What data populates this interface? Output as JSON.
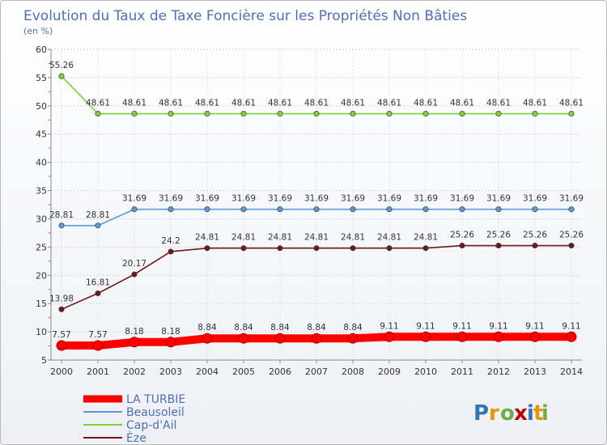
{
  "chart_data": {
    "type": "line",
    "title": "Evolution du Taux de Taxe Foncière sur les Propriétés Non Bâties",
    "unit_label": "(en %)",
    "xlabel": "",
    "ylabel": "",
    "categories": [
      "2000",
      "2001",
      "2002",
      "2003",
      "2004",
      "2005",
      "2006",
      "2007",
      "2008",
      "2009",
      "2010",
      "2011",
      "2012",
      "2013",
      "2014"
    ],
    "ylim": [
      5,
      60
    ],
    "yticks": [
      5,
      10,
      15,
      20,
      25,
      30,
      35,
      40,
      45,
      50,
      55,
      60
    ],
    "grid": true,
    "legend_position": "bottom-left",
    "series": [
      {
        "name": "LA TURBIE",
        "color": "#ff0000",
        "thick": true,
        "values": [
          7.57,
          7.57,
          8.18,
          8.18,
          8.84,
          8.84,
          8.84,
          8.84,
          8.84,
          9.11,
          9.11,
          9.11,
          9.11,
          9.11,
          9.11
        ],
        "labels": [
          "7.57",
          "7.57",
          "8.18",
          "8.18",
          "8.84",
          "8.84",
          "8.84",
          "8.84",
          "8.84",
          "9.11",
          "9.11",
          "9.11",
          "9.11",
          "9.11",
          "9.11"
        ]
      },
      {
        "name": "Beausoleil",
        "color": "#5b9bd5",
        "thick": false,
        "values": [
          28.81,
          28.81,
          31.69,
          31.69,
          31.69,
          31.69,
          31.69,
          31.69,
          31.69,
          31.69,
          31.69,
          31.69,
          31.69,
          31.69,
          31.69
        ],
        "labels": [
          "28.81",
          "28.81",
          "31.69",
          "31.69",
          "31.69",
          "31.69",
          "31.69",
          "31.69",
          "31.69",
          "31.69",
          "31.69",
          "31.69",
          "31.69",
          "31.69",
          "31.69"
        ]
      },
      {
        "name": "Cap-d'Ail",
        "color": "#7fd13b",
        "thick": false,
        "values": [
          55.26,
          48.61,
          48.61,
          48.61,
          48.61,
          48.61,
          48.61,
          48.61,
          48.61,
          48.61,
          48.61,
          48.61,
          48.61,
          48.61,
          48.61
        ],
        "labels": [
          "55.26",
          "48.61",
          "48.61",
          "48.61",
          "48.61",
          "48.61",
          "48.61",
          "48.61",
          "48.61",
          "48.61",
          "48.61",
          "48.61",
          "48.61",
          "48.61",
          "48.61"
        ]
      },
      {
        "name": "Èze",
        "color": "#6b1b1b",
        "thick": false,
        "values": [
          13.98,
          16.81,
          20.17,
          24.2,
          24.81,
          24.81,
          24.81,
          24.81,
          24.81,
          24.81,
          24.81,
          25.26,
          25.26,
          25.26,
          25.26
        ],
        "labels": [
          "13.98",
          "16.81",
          "20.17",
          "24.2",
          "24.81",
          "24.81",
          "24.81",
          "24.81",
          "24.81",
          "24.81",
          "24.81",
          "25.26",
          "25.26",
          "25.26",
          "25.26"
        ]
      }
    ]
  },
  "logo": {
    "text": "Proxiti",
    "letter_colors": [
      "#2e75b6",
      "#e69500",
      "#70ad47",
      "#c00000",
      "#2e75b6",
      "#e69500",
      "#70ad47"
    ]
  }
}
